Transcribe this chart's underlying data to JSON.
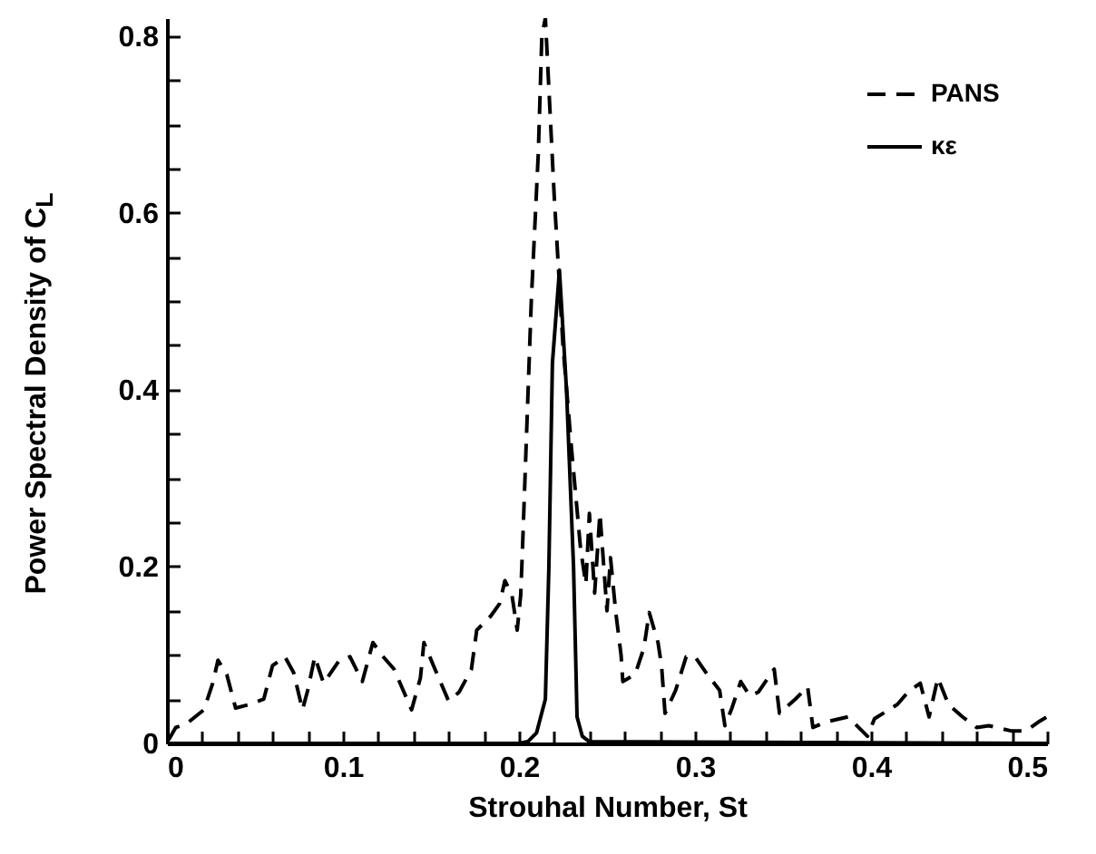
{
  "chart_data": {
    "type": "line",
    "xlabel": "Strouhal Number, St",
    "ylabel": "Power Spectral Density of C$_{L}$",
    "xlim": [
      0,
      0.5
    ],
    "ylim": [
      0,
      0.82
    ],
    "xticks": [
      0,
      {
        "value": 0.02,
        "label": null
      },
      {
        "value": 0.04,
        "label": null
      },
      {
        "value": 0.06,
        "label": null
      },
      {
        "value": 0.08,
        "label": null
      },
      0.1,
      {
        "value": 0.12,
        "label": null
      },
      {
        "value": 0.14,
        "label": null
      },
      {
        "value": 0.16,
        "label": null
      },
      {
        "value": 0.18,
        "label": null
      },
      0.2,
      {
        "value": 0.22,
        "label": null
      },
      {
        "value": 0.24,
        "label": null
      },
      {
        "value": 0.26,
        "label": null
      },
      {
        "value": 0.28,
        "label": null
      },
      0.3,
      {
        "value": 0.32,
        "label": null
      },
      {
        "value": 0.34,
        "label": null
      },
      {
        "value": 0.36,
        "label": null
      },
      {
        "value": 0.38,
        "label": null
      },
      0.4,
      {
        "value": 0.42,
        "label": null
      },
      {
        "value": 0.44,
        "label": null
      },
      {
        "value": 0.46,
        "label": null
      },
      {
        "value": 0.48,
        "label": null
      },
      0.5
    ],
    "yticks": [
      0,
      {
        "value": 0.05,
        "label": null
      },
      {
        "value": 0.1,
        "label": null
      },
      {
        "value": 0.15,
        "label": null
      },
      0.2,
      {
        "value": 0.25,
        "label": null
      },
      {
        "value": 0.3,
        "label": null
      },
      {
        "value": 0.35,
        "label": null
      },
      0.4,
      {
        "value": 0.45,
        "label": null
      },
      {
        "value": 0.5,
        "label": null
      },
      {
        "value": 0.55,
        "label": null
      },
      0.6,
      {
        "value": 0.65,
        "label": null
      },
      {
        "value": 0.7,
        "label": null
      },
      {
        "value": 0.75,
        "label": null
      },
      0.8
    ],
    "legend": "top right",
    "grid": false,
    "marker": "none",
    "series": [
      {
        "name": "PANS",
        "color": "#000000",
        "line_style": "dashed",
        "x": [
          0.001,
          0.005,
          0.011,
          0.021,
          0.026,
          0.029,
          0.034,
          0.039,
          0.047,
          0.055,
          0.06,
          0.067,
          0.072,
          0.077,
          0.08,
          0.084,
          0.089,
          0.098,
          0.104,
          0.111,
          0.117,
          0.122,
          0.129,
          0.139,
          0.144,
          0.146,
          0.151,
          0.16,
          0.166,
          0.173,
          0.176,
          0.184,
          0.189,
          0.192,
          0.196,
          0.199,
          0.201,
          0.202,
          0.207,
          0.211,
          0.213,
          0.215,
          0.22,
          0.225,
          0.23,
          0.235,
          0.238,
          0.24,
          0.243,
          0.246,
          0.25,
          0.252,
          0.255,
          0.258,
          0.259,
          0.266,
          0.271,
          0.274,
          0.279,
          0.281,
          0.283,
          0.289,
          0.295,
          0.3,
          0.307,
          0.314,
          0.317,
          0.321,
          0.326,
          0.331,
          0.336,
          0.345,
          0.348,
          0.357,
          0.364,
          0.367,
          0.374,
          0.387,
          0.398,
          0.402,
          0.415,
          0.421,
          0.428,
          0.433,
          0.438,
          0.444,
          0.452,
          0.46,
          0.467,
          0.48,
          0.488,
          0.495,
          0.5
        ],
        "values": [
          0.004,
          0.018,
          0.022,
          0.038,
          0.068,
          0.094,
          0.078,
          0.04,
          0.044,
          0.05,
          0.088,
          0.098,
          0.08,
          0.038,
          0.06,
          0.098,
          0.068,
          0.094,
          0.098,
          0.07,
          0.114,
          0.1,
          0.084,
          0.038,
          0.074,
          0.114,
          0.09,
          0.048,
          0.058,
          0.084,
          0.128,
          0.144,
          0.158,
          0.184,
          0.168,
          0.128,
          0.168,
          0.22,
          0.5,
          0.668,
          0.8,
          0.82,
          0.62,
          0.45,
          0.33,
          0.22,
          0.18,
          0.26,
          0.17,
          0.26,
          0.15,
          0.21,
          0.148,
          0.1,
          0.07,
          0.078,
          0.108,
          0.148,
          0.114,
          0.088,
          0.034,
          0.06,
          0.098,
          0.098,
          0.078,
          0.06,
          0.02,
          0.04,
          0.07,
          0.054,
          0.058,
          0.084,
          0.034,
          0.05,
          0.064,
          0.018,
          0.024,
          0.03,
          0.008,
          0.028,
          0.044,
          0.058,
          0.068,
          0.03,
          0.074,
          0.044,
          0.03,
          0.018,
          0.02,
          0.014,
          0.014,
          0.024,
          0.03
        ]
      },
      {
        "name": "κε",
        "color": "#000000",
        "line_style": "solid",
        "x": [
          0,
          0.2,
          0.205,
          0.21,
          0.215,
          0.217,
          0.219,
          0.223,
          0.227,
          0.231,
          0.233,
          0.236,
          0.24,
          0.5
        ],
        "values": [
          0,
          0,
          0.002,
          0.012,
          0.05,
          0.2,
          0.43,
          0.535,
          0.4,
          0.2,
          0.03,
          0.008,
          0.002,
          0
        ]
      }
    ]
  }
}
